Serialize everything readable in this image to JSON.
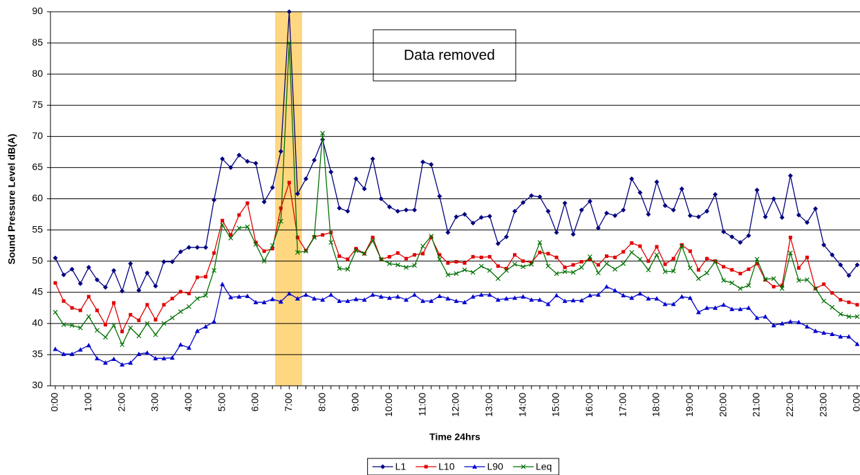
{
  "chart_data": {
    "type": "line",
    "y_axis_title": "Sound Pressure Level dB(A)",
    "x_axis_title": "Time 24hrs",
    "annotation": "Data removed",
    "ylim": [
      30,
      90
    ],
    "yticks": [
      30,
      35,
      40,
      45,
      50,
      55,
      60,
      65,
      70,
      75,
      80,
      85,
      90
    ],
    "grid": true,
    "legend": "bottom",
    "categories": [
      "0:00",
      null,
      null,
      null,
      "1:00",
      null,
      null,
      null,
      "2:00",
      null,
      null,
      null,
      "3:00",
      null,
      null,
      null,
      "4:00",
      null,
      null,
      null,
      "5:00",
      null,
      null,
      null,
      "6:00",
      null,
      null,
      null,
      "7:00",
      null,
      null,
      null,
      "8:00",
      null,
      null,
      null,
      "9:00",
      null,
      null,
      null,
      "10:00",
      null,
      null,
      null,
      "11:00",
      null,
      null,
      null,
      "12:00",
      null,
      null,
      null,
      "13:00",
      null,
      null,
      null,
      "14:00",
      null,
      null,
      null,
      "15:00",
      null,
      null,
      null,
      "16:00",
      null,
      null,
      null,
      "17:00",
      null,
      null,
      null,
      "18:00",
      null,
      null,
      null,
      "19:00",
      null,
      null,
      null,
      "20:00",
      null,
      null,
      null,
      "21:00",
      null,
      null,
      null,
      "22:00",
      null,
      null,
      null,
      "23:00",
      null,
      null,
      null,
      "0:00"
    ],
    "series": [
      {
        "name": "L1",
        "color": "#000080",
        "marker": "diamond",
        "values": [
          50.5,
          47.8,
          48.7,
          46.4,
          49,
          47,
          45.8,
          48.5,
          45.2,
          49.6,
          45.3,
          48.1,
          46,
          49.9,
          49.9,
          51.5,
          52.2,
          52.2,
          52.2,
          59.8,
          66.4,
          65,
          67,
          66,
          65.7,
          59.5,
          61.8,
          67.6,
          90,
          60.8,
          63.2,
          66.2,
          69.5,
          64.3,
          58.5,
          58,
          63.2,
          61.6,
          66.4,
          60,
          58.7,
          58,
          58.2,
          58.2,
          65.9,
          65.5,
          60.4,
          54.6,
          57.1,
          57.5,
          56.1,
          57,
          57.2,
          52.8,
          53.9,
          58,
          59.4,
          60.5,
          60.3,
          58,
          54.6,
          59.3,
          54.3,
          58.2,
          59.6,
          55.3,
          57.7,
          57.3,
          58.2,
          63.2,
          61,
          57.5,
          62.7,
          58.9,
          58.2,
          61.6,
          57.3,
          57.1,
          58,
          60.7,
          54.7,
          53.9,
          53,
          54.1,
          61.4,
          57.1,
          60,
          57,
          63.7,
          57.4,
          56.2,
          58.4,
          52.6,
          51,
          49.4,
          47.7,
          49.4
        ]
      },
      {
        "name": "L10",
        "color": "#e00000",
        "marker": "square",
        "values": [
          46.5,
          43.6,
          42.5,
          42.1,
          44.3,
          42.1,
          39.8,
          43.3,
          38.7,
          41.4,
          40.5,
          43,
          40.6,
          43,
          44,
          45.1,
          44.8,
          47.4,
          47.5,
          51.3,
          56.5,
          54.2,
          57.4,
          59.3,
          53,
          51.6,
          52,
          58.5,
          62.6,
          53.8,
          51.7,
          53.9,
          54.2,
          54.6,
          50.8,
          50.3,
          52,
          51.2,
          53.8,
          50.3,
          50.7,
          51.3,
          50.4,
          51,
          51.2,
          53.8,
          51,
          49.7,
          49.9,
          49.7,
          50.7,
          50.6,
          50.7,
          49.2,
          48.8,
          51,
          50,
          49.8,
          51.4,
          51.2,
          50.6,
          49,
          49.4,
          49.9,
          50.3,
          49.4,
          50.8,
          50.6,
          51.5,
          52.9,
          52.4,
          50,
          52.3,
          49.5,
          50.4,
          52.6,
          51.6,
          48.6,
          50.4,
          50,
          49.1,
          48.6,
          48,
          48.7,
          49.6,
          47,
          45.9,
          46.1,
          53.8,
          48.9,
          50.6,
          45.6,
          46.3,
          44.9,
          43.8,
          43.4,
          43
        ]
      },
      {
        "name": "L90",
        "color": "#0000cc",
        "marker": "triangle",
        "values": [
          35.9,
          35.1,
          35.1,
          35.8,
          36.5,
          34.4,
          33.7,
          34.3,
          33.4,
          33.7,
          35.1,
          35.3,
          34.4,
          34.4,
          34.5,
          36.6,
          36.1,
          38.8,
          39.5,
          40.3,
          46.3,
          44.2,
          44.3,
          44.4,
          43.4,
          43.4,
          43.9,
          43.5,
          44.8,
          44,
          44.6,
          44,
          43.8,
          44.6,
          43.6,
          43.6,
          43.9,
          43.8,
          44.6,
          44.3,
          44.1,
          44.3,
          43.8,
          44.6,
          43.6,
          43.6,
          44.4,
          44,
          43.6,
          43.4,
          44.3,
          44.6,
          44.6,
          43.8,
          44,
          44.1,
          44.3,
          43.8,
          43.8,
          43.1,
          44.5,
          43.6,
          43.7,
          43.7,
          44.5,
          44.6,
          45.9,
          45.3,
          44.5,
          44.1,
          44.8,
          44,
          44,
          43.1,
          43.1,
          44.3,
          44.1,
          41.8,
          42.5,
          42.5,
          43,
          42.3,
          42.3,
          42.5,
          40.9,
          41.1,
          39.7,
          40,
          40.3,
          40.2,
          39.5,
          38.8,
          38.5,
          38.3,
          37.9,
          37.9,
          36.7
        ]
      },
      {
        "name": "Leq",
        "color": "#007000",
        "marker": "x",
        "values": [
          41.8,
          39.8,
          39.7,
          39.3,
          41.1,
          38.9,
          37.8,
          39.7,
          36.6,
          39.3,
          38,
          40,
          38.2,
          40,
          40.9,
          41.9,
          42.7,
          44,
          44.5,
          48.5,
          55.8,
          53.7,
          55.3,
          55.5,
          52.7,
          50,
          52.5,
          56.4,
          85,
          51.4,
          51.6,
          53.8,
          70.5,
          53,
          48.8,
          48.7,
          51.7,
          51.2,
          53.3,
          50.3,
          49.6,
          49.4,
          49,
          49.3,
          52.4,
          54,
          50.3,
          47.8,
          48,
          48.6,
          48.2,
          49.2,
          48.5,
          47.2,
          48.5,
          49.5,
          49.1,
          49.5,
          53,
          49.2,
          48,
          48.3,
          48.2,
          49,
          50.7,
          48.1,
          49.6,
          48.7,
          49.6,
          51.4,
          50.3,
          48.6,
          51,
          48.3,
          48.4,
          52.4,
          48.9,
          47.2,
          48.1,
          49.9,
          46.9,
          46.5,
          45.6,
          46.1,
          50.3,
          47.1,
          47.2,
          45.6,
          51.3,
          46.9,
          47,
          45.6,
          43.6,
          42.6,
          41.5,
          41.1,
          41.1
        ]
      }
    ]
  }
}
